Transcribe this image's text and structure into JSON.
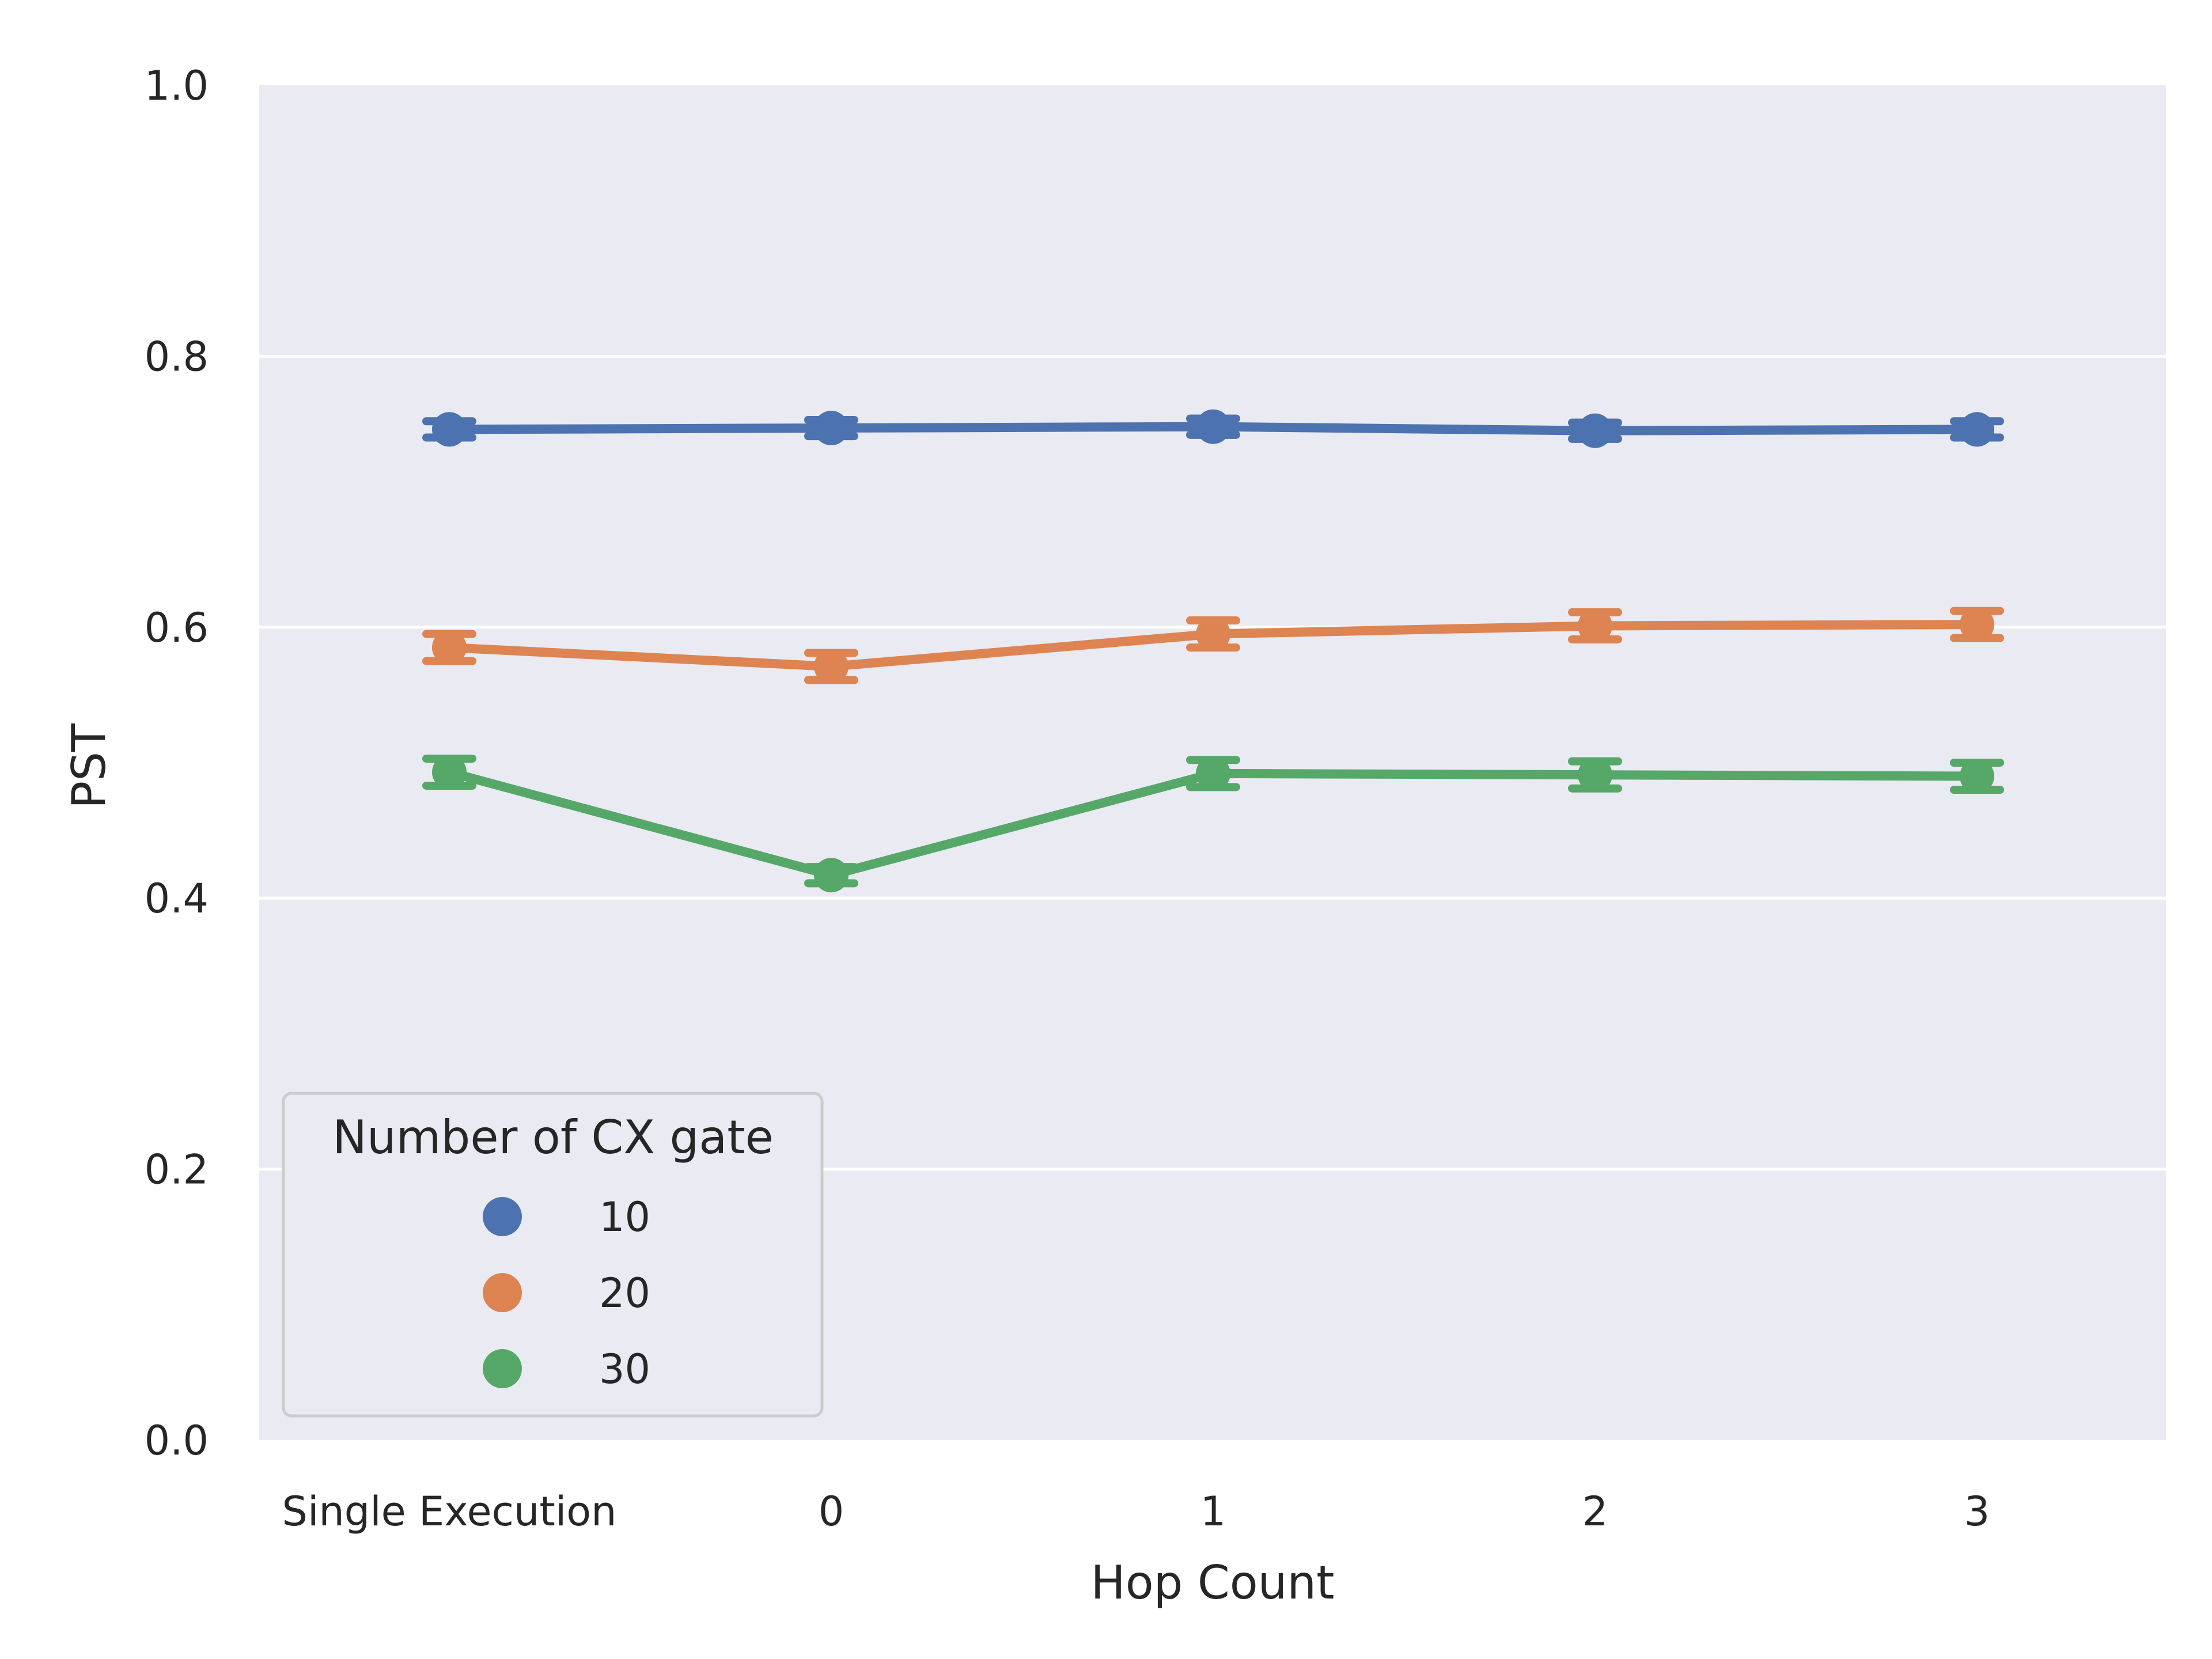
{
  "chart_data": {
    "type": "line",
    "categories": [
      "Single Execution",
      "0",
      "1",
      "2",
      "3"
    ],
    "series": [
      {
        "name": "10",
        "values": [
          0.746,
          0.747,
          0.748,
          0.745,
          0.746
        ],
        "error": [
          0.006,
          0.006,
          0.006,
          0.006,
          0.006
        ],
        "color": "#4c72b0"
      },
      {
        "name": "20",
        "values": [
          0.585,
          0.571,
          0.595,
          0.601,
          0.602
        ],
        "error": [
          0.01,
          0.01,
          0.01,
          0.01,
          0.01
        ],
        "color": "#dd8452"
      },
      {
        "name": "30",
        "values": [
          0.493,
          0.417,
          0.492,
          0.491,
          0.49
        ],
        "error": [
          0.01,
          0.006,
          0.01,
          0.01,
          0.01
        ],
        "color": "#55a868"
      }
    ],
    "xlabel": "Hop Count",
    "ylabel": "PST",
    "ylim": [
      0,
      1.0
    ],
    "yticks": [
      "0.0",
      "0.2",
      "0.4",
      "0.6",
      "0.8",
      "1.0"
    ],
    "grid": true,
    "legend": {
      "title": "Number of CX gate",
      "placement": "lower-left"
    },
    "background": "#eaeaf2"
  }
}
